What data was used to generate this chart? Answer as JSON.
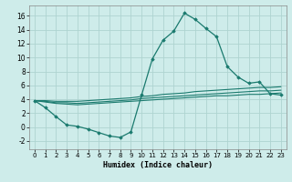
{
  "xlabel": "Humidex (Indice chaleur)",
  "xlim": [
    -0.5,
    23.5
  ],
  "ylim": [
    -3.2,
    17.5
  ],
  "yticks": [
    -2,
    0,
    2,
    4,
    6,
    8,
    10,
    12,
    14,
    16
  ],
  "xticks": [
    0,
    1,
    2,
    3,
    4,
    5,
    6,
    7,
    8,
    9,
    10,
    11,
    12,
    13,
    14,
    15,
    16,
    17,
    18,
    19,
    20,
    21,
    22,
    23
  ],
  "bg_color": "#ceecea",
  "grid_color": "#aed4d0",
  "line_color": "#1a7a6e",
  "line1_x": [
    0,
    1,
    2,
    3,
    4,
    5,
    6,
    7,
    8,
    9,
    10,
    11,
    12,
    13,
    14,
    15,
    16,
    17,
    18,
    19,
    20,
    21,
    22,
    23
  ],
  "line1_y": [
    3.8,
    2.8,
    1.5,
    0.3,
    0.1,
    -0.3,
    -0.8,
    -1.3,
    -1.5,
    -0.7,
    4.6,
    9.8,
    12.5,
    13.8,
    16.4,
    15.5,
    14.2,
    13.0,
    8.7,
    7.2,
    6.3,
    6.5,
    4.8,
    4.6
  ],
  "line2_x": [
    0,
    1,
    2,
    3,
    4,
    5,
    6,
    7,
    8,
    9,
    10,
    11,
    12,
    13,
    14,
    15,
    16,
    17,
    18,
    19,
    20,
    21,
    22,
    23
  ],
  "line2_y": [
    3.8,
    3.6,
    3.4,
    3.3,
    3.2,
    3.3,
    3.4,
    3.5,
    3.6,
    3.7,
    3.8,
    3.9,
    4.0,
    4.1,
    4.2,
    4.3,
    4.4,
    4.5,
    4.5,
    4.6,
    4.7,
    4.7,
    4.8,
    4.9
  ],
  "line3_x": [
    0,
    1,
    2,
    3,
    4,
    5,
    6,
    7,
    8,
    9,
    10,
    11,
    12,
    13,
    14,
    15,
    16,
    17,
    18,
    19,
    20,
    21,
    22,
    23
  ],
  "line3_y": [
    3.8,
    3.7,
    3.5,
    3.5,
    3.4,
    3.5,
    3.6,
    3.7,
    3.8,
    3.9,
    4.1,
    4.2,
    4.3,
    4.4,
    4.5,
    4.6,
    4.7,
    4.8,
    4.9,
    5.0,
    5.1,
    5.2,
    5.2,
    5.3
  ],
  "line4_x": [
    0,
    1,
    2,
    3,
    4,
    5,
    6,
    7,
    8,
    9,
    10,
    11,
    12,
    13,
    14,
    15,
    16,
    17,
    18,
    19,
    20,
    21,
    22,
    23
  ],
  "line4_y": [
    3.8,
    3.8,
    3.7,
    3.7,
    3.7,
    3.8,
    3.9,
    4.0,
    4.1,
    4.2,
    4.4,
    4.5,
    4.7,
    4.8,
    4.9,
    5.1,
    5.2,
    5.3,
    5.4,
    5.5,
    5.6,
    5.7,
    5.7,
    5.8
  ]
}
